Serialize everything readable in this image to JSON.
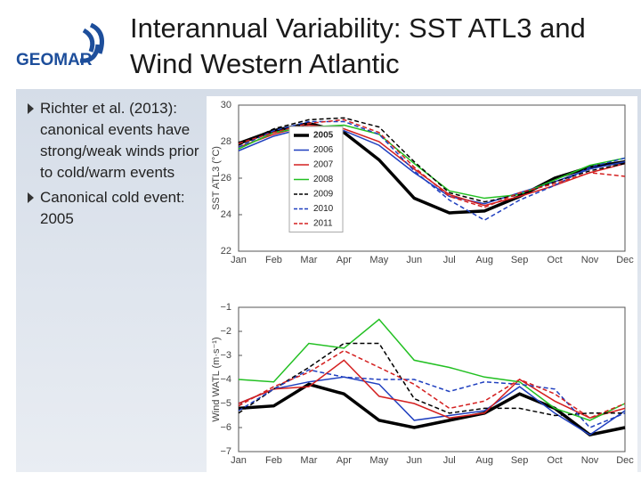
{
  "header": {
    "logo": "GEOMAR",
    "title": "Interannual Variability: SST ATL3 and Wind Western Atlantic"
  },
  "bullets": [
    "Richter et al. (2013): canonical events have strong/weak winds prior to cold/warm events",
    "Canonical cold event: 2005"
  ],
  "chart_data": [
    {
      "type": "line",
      "ylabel": "SST ATL3 (°C)",
      "legend": "center left",
      "categories": [
        "Jan",
        "Feb",
        "Mar",
        "Apr",
        "May",
        "Jun",
        "Jul",
        "Aug",
        "Sep",
        "Oct",
        "Nov",
        "Dec"
      ],
      "ylim": [
        22,
        30
      ],
      "yticks": [
        22,
        24,
        26,
        28,
        30
      ],
      "series": [
        {
          "name": "2005",
          "color": "#000000",
          "dashed": false,
          "bold": true,
          "values": [
            27.9,
            28.6,
            29.0,
            28.5,
            27.0,
            24.9,
            24.1,
            24.2,
            25.0,
            26.0,
            26.6,
            26.9
          ]
        },
        {
          "name": "2006",
          "color": "#1f3fbf",
          "dashed": false,
          "bold": false,
          "values": [
            27.5,
            28.3,
            28.8,
            28.6,
            27.8,
            26.3,
            25.0,
            24.6,
            25.2,
            25.8,
            26.5,
            26.9
          ]
        },
        {
          "name": "2007",
          "color": "#d42020",
          "dashed": false,
          "bold": false,
          "values": [
            27.7,
            28.4,
            28.9,
            28.7,
            28.0,
            26.5,
            25.1,
            24.5,
            25.0,
            25.6,
            26.3,
            26.8
          ]
        },
        {
          "name": "2008",
          "color": "#22c022",
          "dashed": false,
          "bold": false,
          "values": [
            27.6,
            28.5,
            28.8,
            28.9,
            28.4,
            26.8,
            25.3,
            24.9,
            25.1,
            25.9,
            26.7,
            27.1
          ]
        },
        {
          "name": "2009",
          "color": "#000000",
          "dashed": true,
          "bold": false,
          "values": [
            27.8,
            28.7,
            29.2,
            29.3,
            28.8,
            26.9,
            25.2,
            24.7,
            25.1,
            25.8,
            26.4,
            26.8
          ]
        },
        {
          "name": "2010",
          "color": "#1f3fbf",
          "dashed": true,
          "bold": false,
          "values": [
            27.7,
            28.6,
            29.1,
            29.1,
            28.4,
            26.4,
            24.8,
            23.7,
            24.8,
            25.6,
            26.6,
            27.1
          ]
        },
        {
          "name": "2011",
          "color": "#d42020",
          "dashed": true,
          "bold": false,
          "values": [
            27.9,
            28.5,
            29.0,
            29.2,
            28.5,
            26.6,
            25.0,
            24.4,
            25.2,
            25.7,
            26.3,
            26.1
          ]
        }
      ]
    },
    {
      "type": "line",
      "ylabel": "Wind WATL (m·s⁻¹)",
      "categories": [
        "Jan",
        "Feb",
        "Mar",
        "Apr",
        "May",
        "Jun",
        "Jul",
        "Aug",
        "Sep",
        "Oct",
        "Nov",
        "Dec"
      ],
      "ylim": [
        -7,
        -1
      ],
      "yticks": [
        {
          "value": -7,
          "label": "−7"
        },
        {
          "value": -6,
          "label": "−6"
        },
        {
          "value": -5,
          "label": "−5"
        },
        {
          "value": -4,
          "label": "−4"
        },
        {
          "value": -3,
          "label": "−3"
        },
        {
          "value": -2,
          "label": "−2"
        },
        {
          "value": -1,
          "label": "−1"
        }
      ],
      "series": [
        {
          "color": "#000000",
          "dashed": false,
          "bold": true,
          "values": [
            -5.2,
            -5.1,
            -4.2,
            -4.6,
            -5.7,
            -6.0,
            -5.7,
            -5.4,
            -4.6,
            -5.2,
            -6.3,
            -6.0
          ]
        },
        {
          "color": "#1f3fbf",
          "dashed": false,
          "bold": false,
          "values": [
            -5.0,
            -4.4,
            -4.1,
            -3.9,
            -4.2,
            -5.7,
            -5.5,
            -5.3,
            -4.3,
            -5.4,
            -6.3,
            -5.3
          ]
        },
        {
          "color": "#d42020",
          "dashed": false,
          "bold": false,
          "values": [
            -5.0,
            -4.4,
            -4.3,
            -3.2,
            -4.7,
            -5.0,
            -5.6,
            -5.4,
            -4.0,
            -4.9,
            -5.6,
            -5.2
          ]
        },
        {
          "color": "#22c022",
          "dashed": false,
          "bold": false,
          "values": [
            -4.0,
            -4.1,
            -2.5,
            -2.7,
            -1.5,
            -3.2,
            -3.5,
            -3.9,
            -4.1,
            -5.2,
            -5.7,
            -5.0
          ]
        },
        {
          "color": "#000000",
          "dashed": true,
          "bold": false,
          "values": [
            -5.4,
            -4.4,
            -3.5,
            -2.5,
            -2.5,
            -4.8,
            -5.4,
            -5.2,
            -5.2,
            -5.5,
            -5.4,
            -5.4
          ]
        },
        {
          "color": "#1f3fbf",
          "dashed": true,
          "bold": false,
          "values": [
            -5.3,
            -4.4,
            -3.6,
            -3.9,
            -4.0,
            -4.0,
            -4.5,
            -4.1,
            -4.2,
            -4.4,
            -6.0,
            -5.4
          ]
        },
        {
          "color": "#d42020",
          "dashed": true,
          "bold": false,
          "values": [
            -5.1,
            -4.3,
            -3.7,
            -2.8,
            -3.5,
            -4.2,
            -5.2,
            -4.9,
            -4.0,
            -4.6,
            -5.6,
            -5.0
          ]
        }
      ]
    }
  ]
}
